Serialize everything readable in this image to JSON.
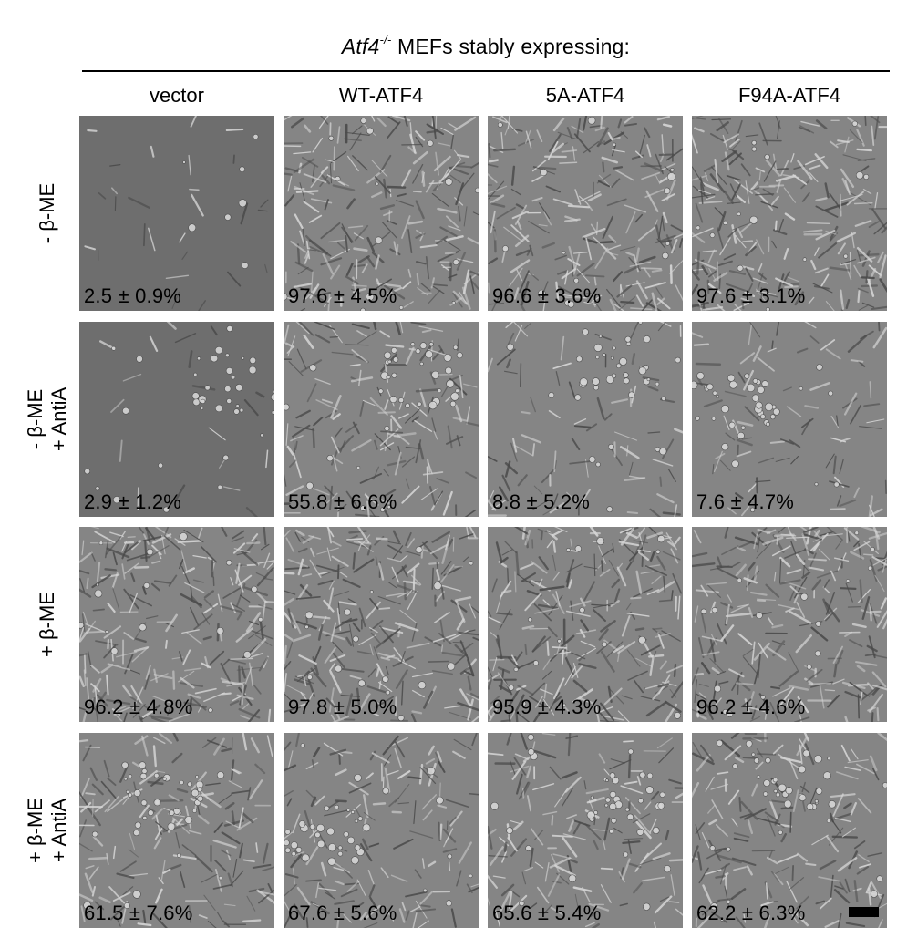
{
  "header": {
    "gene": "Atf4",
    "superscript": "-/-",
    "rest": " MEFs stably expressing:"
  },
  "columns": [
    "vector",
    "WT-ATF4",
    "5A-ATF4",
    "F94A-ATF4"
  ],
  "rows": [
    {
      "line1": "- β-ME",
      "line2": ""
    },
    {
      "line1": "- β-ME",
      "line2": "+ AntiA"
    },
    {
      "line1": "+ β-ME",
      "line2": ""
    },
    {
      "line1": "+ β-ME",
      "line2": "+ AntiA"
    }
  ],
  "percentages": [
    [
      "2.5 ± 0.9%",
      "97.6 ± 4.5%",
      "96.6 ± 3.6%",
      "97.6 ± 3.1%"
    ],
    [
      "2.9 ± 1.2%",
      "55.8 ± 6.6%",
      "8.8 ± 5.2%",
      "7.6 ± 4.7%"
    ],
    [
      "96.2 ± 4.8%",
      "97.8 ± 5.0%",
      "95.9 ± 4.3%",
      "96.2 ± 4.6%"
    ],
    [
      "61.5 ± 7.6%",
      "67.6 ± 5.6%",
      "65.6 ± 5.4%",
      "62.2 ± 6.3%"
    ]
  ],
  "cell_density": [
    [
      0.08,
      0.85,
      0.85,
      0.9
    ],
    [
      0.05,
      0.6,
      0.3,
      0.3
    ],
    [
      0.95,
      0.95,
      0.95,
      0.95
    ],
    [
      0.6,
      0.55,
      0.55,
      0.6
    ]
  ],
  "colors": {
    "background_light": "#858585",
    "background_dark": "#6e6e6e",
    "cell_bright": "#d6d6d6",
    "cell_dark": "#4a4a4a"
  }
}
